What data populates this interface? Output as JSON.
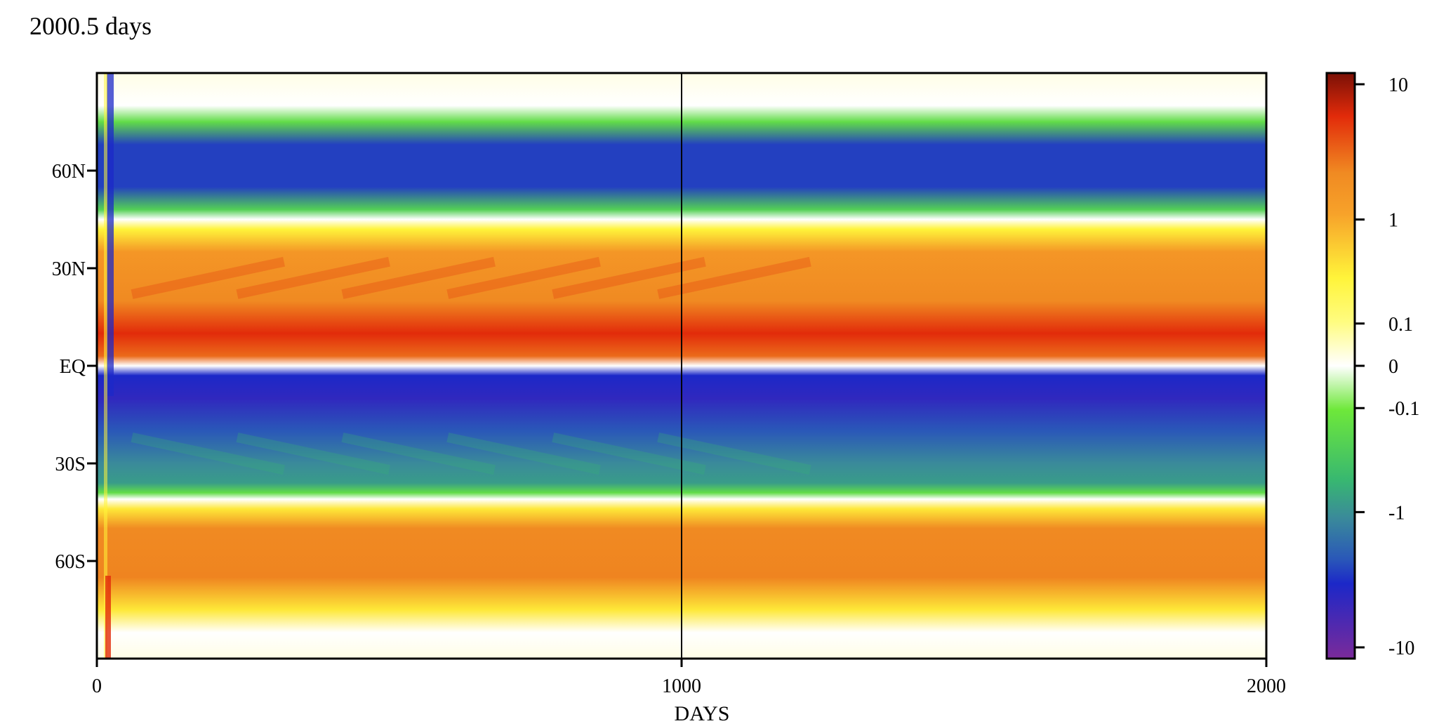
{
  "title": "2000.5 days",
  "chart_data": {
    "type": "heatmap",
    "title": "2000.5 days",
    "xlabel": "DAYS",
    "ylabel": "",
    "xlim": [
      0,
      2000
    ],
    "x_ticks": [
      "0",
      "1000",
      "2000"
    ],
    "x_tick_values": [
      0,
      1000,
      2000
    ],
    "y_ticks": [
      "60N",
      "30N",
      "EQ",
      "30S",
      "60S"
    ],
    "y_tick_values": [
      60,
      30,
      0,
      -30,
      -60
    ],
    "ylim": [
      -90,
      90
    ],
    "vertical_line_x": 1000,
    "colorbar": {
      "labels": [
        "10",
        "1",
        "0.1",
        "0",
        "-0.1",
        "-1",
        "-10"
      ],
      "values": [
        10,
        1,
        0.1,
        0,
        -0.1,
        -1,
        -10
      ],
      "scale": "symmetric-log"
    },
    "latitude_profile_steady": [
      {
        "lat": 90,
        "value": 0.02
      },
      {
        "lat": 80,
        "value": 0.0
      },
      {
        "lat": 75,
        "value": -0.2
      },
      {
        "lat": 68,
        "value": -2.5
      },
      {
        "lat": 55,
        "value": -2.5
      },
      {
        "lat": 48,
        "value": -0.3
      },
      {
        "lat": 45,
        "value": 0.0
      },
      {
        "lat": 42,
        "value": 0.3
      },
      {
        "lat": 35,
        "value": 1.5
      },
      {
        "lat": 20,
        "value": 2.0
      },
      {
        "lat": 10,
        "value": 5.0
      },
      {
        "lat": 3,
        "value": 3.0
      },
      {
        "lat": 0,
        "value": 0.0
      },
      {
        "lat": -3,
        "value": -3.0
      },
      {
        "lat": -10,
        "value": -4.5
      },
      {
        "lat": -20,
        "value": -2.0
      },
      {
        "lat": -30,
        "value": -1.0
      },
      {
        "lat": -36,
        "value": -0.8
      },
      {
        "lat": -39,
        "value": -0.2
      },
      {
        "lat": -41,
        "value": 0.0
      },
      {
        "lat": -44,
        "value": 0.4
      },
      {
        "lat": -50,
        "value": 2.0
      },
      {
        "lat": -65,
        "value": 2.2
      },
      {
        "lat": -75,
        "value": 0.4
      },
      {
        "lat": -82,
        "value": 0.0
      },
      {
        "lat": -90,
        "value": 0.02
      }
    ]
  },
  "colors": {
    "scale": [
      {
        "v": -10,
        "c": "#7b2a9a"
      },
      {
        "v": -3,
        "c": "#1c28c8"
      },
      {
        "v": -2,
        "c": "#2a58b8"
      },
      {
        "v": -1,
        "c": "#3a8a9a"
      },
      {
        "v": -0.5,
        "c": "#38b870"
      },
      {
        "v": -0.1,
        "c": "#6ee83a"
      },
      {
        "v": 0,
        "c": "#ffffff"
      },
      {
        "v": 0.1,
        "c": "#fffc80"
      },
      {
        "v": 0.3,
        "c": "#fff43a"
      },
      {
        "v": 1,
        "c": "#f7a22a"
      },
      {
        "v": 2,
        "c": "#f08a22"
      },
      {
        "v": 5,
        "c": "#e22b0a"
      },
      {
        "v": 10,
        "c": "#7a1006"
      }
    ]
  }
}
